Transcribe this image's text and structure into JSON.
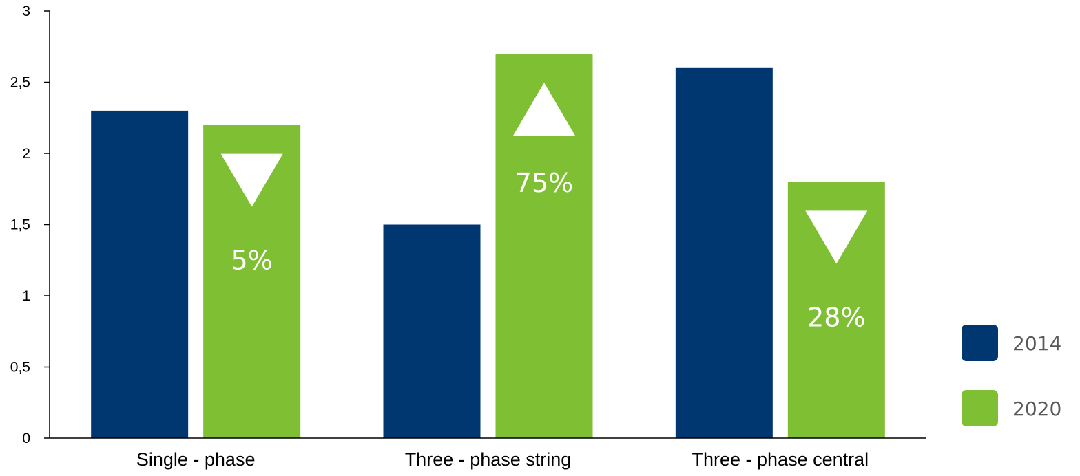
{
  "chart_data": {
    "type": "bar",
    "categories": [
      "Single - phase",
      "Three - phase string",
      "Three - phase central"
    ],
    "series": [
      {
        "name": "2014",
        "color": "#003770",
        "values": [
          2.3,
          1.5,
          2.6
        ]
      },
      {
        "name": "2020",
        "color": "#7fbf33",
        "values": [
          2.2,
          2.7,
          1.8
        ]
      }
    ],
    "annotations": [
      {
        "category": "Single - phase",
        "series": "2020",
        "direction": "down",
        "label": "5%"
      },
      {
        "category": "Three - phase string",
        "series": "2020",
        "direction": "up",
        "label": "75%"
      },
      {
        "category": "Three - phase central",
        "series": "2020",
        "direction": "down",
        "label": "28%"
      }
    ],
    "y_ticks": [
      "0",
      "0,5",
      "1",
      "1,5",
      "2",
      "2,5",
      "3"
    ],
    "ylim": [
      0,
      3
    ],
    "grid": false,
    "legend_position": "right"
  }
}
